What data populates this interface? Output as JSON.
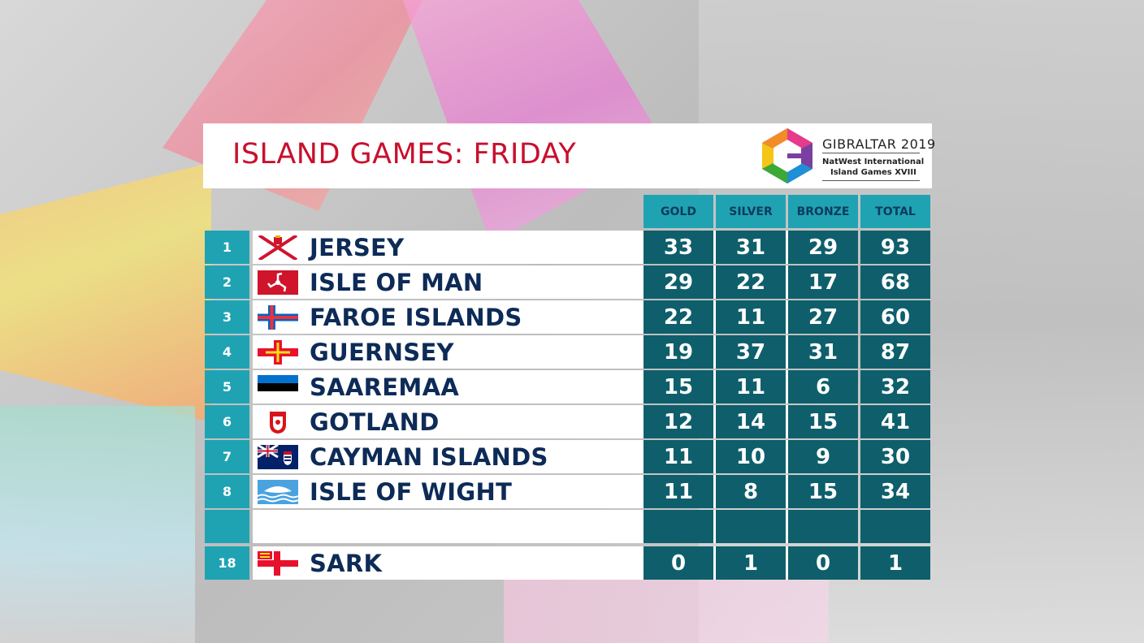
{
  "title": "ISLAND GAMES: FRIDAY",
  "logo": {
    "line1": "GIBRALTAR 2019",
    "line2": "NatWest International",
    "line3": "Island Games XVIII"
  },
  "columns": [
    "GOLD",
    "SILVER",
    "BRONZE",
    "TOTAL"
  ],
  "rows": [
    {
      "rank": "1",
      "name": "JERSEY",
      "flag": "jersey-flag-icon",
      "gold": "33",
      "silver": "31",
      "bronze": "29",
      "total": "93"
    },
    {
      "rank": "2",
      "name": "ISLE OF MAN",
      "flag": "isle-of-man-flag-icon",
      "gold": "29",
      "silver": "22",
      "bronze": "17",
      "total": "68"
    },
    {
      "rank": "3",
      "name": "FAROE ISLANDS",
      "flag": "faroe-flag-icon",
      "gold": "22",
      "silver": "11",
      "bronze": "27",
      "total": "60"
    },
    {
      "rank": "4",
      "name": "GUERNSEY",
      "flag": "guernsey-flag-icon",
      "gold": "19",
      "silver": "37",
      "bronze": "31",
      "total": "87"
    },
    {
      "rank": "5",
      "name": "SAAREMAA",
      "flag": "saaremaa-flag-icon",
      "gold": "15",
      "silver": "11",
      "bronze": "6",
      "total": "32"
    },
    {
      "rank": "6",
      "name": "GOTLAND",
      "flag": "gotland-flag-icon",
      "gold": "12",
      "silver": "14",
      "bronze": "15",
      "total": "41"
    },
    {
      "rank": "7",
      "name": "CAYMAN ISLANDS",
      "flag": "cayman-flag-icon",
      "gold": "11",
      "silver": "10",
      "bronze": "9",
      "total": "30"
    },
    {
      "rank": "8",
      "name": "ISLE OF WIGHT",
      "flag": "isle-of-wight-flag-icon",
      "gold": "11",
      "silver": "8",
      "bronze": "15",
      "total": "34"
    },
    {
      "rank": "",
      "name": "",
      "flag": "",
      "gold": "",
      "silver": "",
      "bronze": "",
      "total": ""
    },
    {
      "rank": "18",
      "name": "SARK",
      "flag": "sark-flag-icon",
      "gold": "0",
      "silver": "1",
      "bronze": "0",
      "total": "1"
    }
  ],
  "colors": {
    "title_red": "#c8102e",
    "header_teal": "#1fa3b3",
    "cell_teal": "#0e5f6b",
    "name_navy": "#0d2b57"
  }
}
